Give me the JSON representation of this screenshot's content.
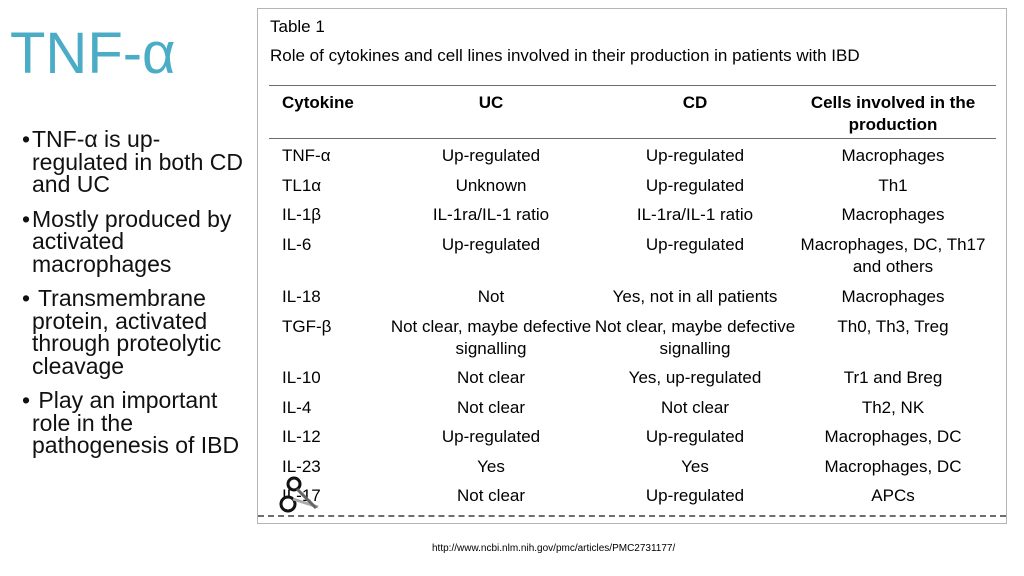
{
  "slide": {
    "title": "TNF-α",
    "bullets": [
      "TNF-α is up-regulated in both CD and UC",
      "Mostly produced by activated macrophages",
      "Transmembrane protein, activated through proteolytic cleavage",
      "Play an important role in the pathogenesis of IBD"
    ],
    "bullet_glyph": "•",
    "source_url": "http://www.ncbi.nlm.nih.gov/pmc/articles/PMC2731177/"
  },
  "table": {
    "label": "Table 1",
    "caption": "Role of cytokines and cell lines involved in their production in patients with IBD",
    "headers": [
      "Cytokine",
      "UC",
      "CD",
      "Cells involved in the production"
    ],
    "rows": [
      [
        "TNF-α",
        "Up-regulated",
        "Up-regulated",
        "Macrophages"
      ],
      [
        "TL1α",
        "Unknown",
        "Up-regulated",
        "Th1"
      ],
      [
        "IL-1β",
        "IL-1ra/IL-1 ratio",
        "IL-1ra/IL-1 ratio",
        "Macrophages"
      ],
      [
        "IL-6",
        "Up-regulated",
        "Up-regulated",
        "Macrophages, DC, Th17 and others"
      ],
      [
        "IL-18",
        "Not",
        "Yes, not in all patients",
        "Macrophages"
      ],
      [
        "TGF-β",
        "Not clear, maybe defective signalling",
        "Not clear, maybe defective signalling",
        "Th0, Th3, Treg"
      ],
      [
        "IL-10",
        "Not clear",
        "Yes, up-regulated",
        "Tr1 and Breg"
      ],
      [
        "IL-4",
        "Not clear",
        "Not clear",
        "Th2, NK"
      ],
      [
        "IL-12",
        "Up-regulated",
        "Up-regulated",
        "Macrophages, DC"
      ],
      [
        "IL-23",
        "Yes",
        "Yes",
        "Macrophages, DC"
      ],
      [
        "IL-17",
        "Not clear",
        "Up-regulated",
        "APCs"
      ]
    ]
  }
}
